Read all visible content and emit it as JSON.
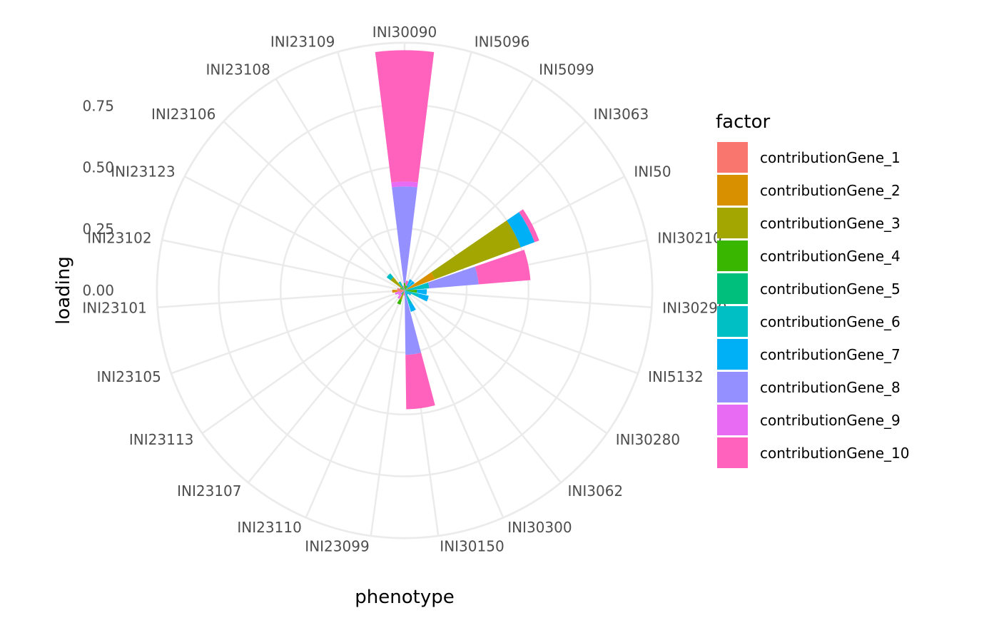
{
  "chart_data": {
    "type": "bar",
    "coord": "polar",
    "xlabel": "phenotype",
    "ylabel": "loading",
    "ylim": [
      -0.5,
      1.0
    ],
    "y_ticks": [
      "0.00",
      "0.25",
      "0.50",
      "0.75"
    ],
    "y_tick_values": [
      0,
      0.25,
      0.5,
      0.75
    ],
    "grid": true,
    "legend": {
      "title": "factor",
      "position": "right"
    },
    "categories": [
      "INI30090",
      "INI5096",
      "INI5099",
      "INI3063",
      "INI50",
      "INI30210",
      "INI30290",
      "INI5132",
      "INI30280",
      "INI3062",
      "INI30300",
      "INI30150",
      "INI23099",
      "INI23110",
      "INI23107",
      "INI23113",
      "INI23105",
      "INI23101",
      "INI23102",
      "INI23123",
      "INI23106",
      "INI23108",
      "INI23109"
    ],
    "series": [
      {
        "name": "contributionGene_1",
        "color": "#F8766D",
        "values": [
          0,
          0,
          0,
          0,
          0,
          0,
          0,
          0,
          0,
          0,
          0,
          0,
          0,
          0,
          0,
          0,
          0.02,
          0.03,
          0.03,
          0,
          0,
          0,
          0
        ]
      },
      {
        "name": "contributionGene_2",
        "color": "#D89000",
        "values": [
          0,
          0,
          0,
          0,
          0.13,
          0,
          0,
          0,
          0,
          0,
          0,
          0,
          0,
          0,
          0,
          0,
          0,
          0.02,
          0,
          0,
          0,
          0,
          0
        ]
      },
      {
        "name": "contributionGene_3",
        "color": "#A3A500",
        "values": [
          0,
          0,
          0,
          0,
          0.37,
          0,
          0,
          0,
          0,
          0,
          0,
          0,
          0,
          0.04,
          0,
          0,
          0,
          0,
          0,
          0,
          0.07,
          0,
          0
        ]
      },
      {
        "name": "contributionGene_4",
        "color": "#39B600",
        "values": [
          0.03,
          0.02,
          0.02,
          0,
          0,
          0,
          0.05,
          0,
          0,
          0,
          0,
          0,
          0,
          0.02,
          0,
          0,
          0,
          0,
          0,
          0,
          0,
          0,
          0
        ]
      },
      {
        "name": "contributionGene_5",
        "color": "#00BF7D",
        "values": [
          0,
          0,
          0,
          0,
          0,
          0,
          0,
          0,
          0,
          0,
          0,
          0,
          0,
          0,
          0.02,
          0,
          0,
          0,
          0,
          0.02,
          0,
          0.02,
          0
        ]
      },
      {
        "name": "contributionGene_6",
        "color": "#00BFC4",
        "values": [
          0,
          0,
          0,
          0,
          0,
          0.1,
          0,
          0.06,
          0,
          0,
          0.06,
          0,
          0,
          0,
          0,
          0,
          0,
          0,
          0,
          0,
          0.02,
          0.02,
          0
        ]
      },
      {
        "name": "contributionGene_7",
        "color": "#00B0F6",
        "values": [
          0,
          0,
          0.03,
          0.05,
          0.06,
          0,
          0.04,
          0.04,
          0.03,
          0.02,
          0.03,
          0,
          0,
          0,
          0,
          0,
          0,
          0,
          0,
          0,
          0,
          0,
          0
        ]
      },
      {
        "name": "contributionGene_8",
        "color": "#9590FF",
        "values": [
          0.39,
          0,
          0,
          0,
          0,
          0.2,
          0,
          0,
          0,
          0,
          0,
          0.26,
          0,
          0,
          0,
          0,
          0,
          0,
          0,
          0,
          0,
          0,
          0
        ]
      },
      {
        "name": "contributionGene_9",
        "color": "#E76BF3",
        "values": [
          0.02,
          0,
          0,
          0,
          0,
          0,
          0,
          0,
          0,
          0,
          0,
          0,
          0,
          0,
          0.02,
          0.03,
          0.02,
          0,
          0,
          0,
          0,
          0,
          0.02
        ]
      },
      {
        "name": "contributionGene_10",
        "color": "#FF62BC",
        "values": [
          0.53,
          0.02,
          0,
          0,
          0.02,
          0.21,
          0,
          0,
          0,
          0,
          0,
          0.22,
          0.02,
          0,
          0,
          0,
          0,
          0,
          0,
          0,
          0,
          0,
          0
        ]
      }
    ]
  }
}
